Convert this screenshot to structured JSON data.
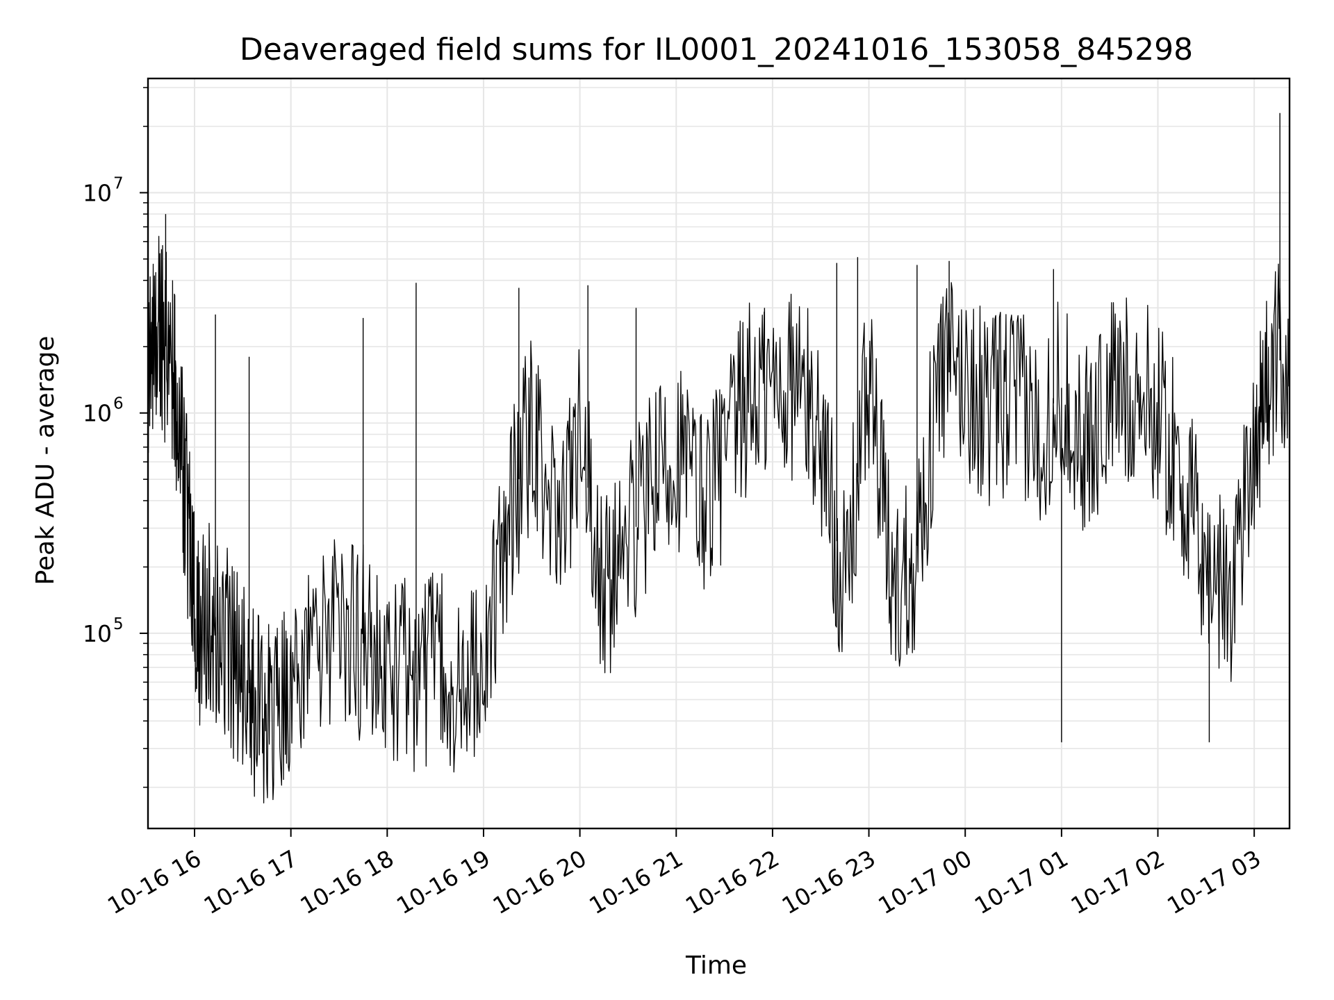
{
  "chart_data": {
    "type": "line",
    "title": "Deaveraged field sums for IL0001_20241016_153058_845298",
    "xlabel": "Time",
    "ylabel": "Peak ADU - average",
    "yscale": "log",
    "ylim": [
      13000,
      33000000
    ],
    "xlim": [
      "2024-10-16 15:31",
      "2024-10-17 03:22"
    ],
    "x_tick_labels": [
      "10-16 16",
      "10-16 17",
      "10-16 18",
      "10-16 19",
      "10-16 20",
      "10-16 21",
      "10-16 22",
      "10-16 23",
      "10-17 00",
      "10-17 01",
      "10-17 02",
      "10-17 03"
    ],
    "y_tick_labels": [
      {
        "base": "10",
        "exponent": "5",
        "value": 100000
      },
      {
        "base": "10",
        "exponent": "6",
        "value": 1000000
      },
      {
        "base": "10",
        "exponent": "7",
        "value": 10000000
      }
    ],
    "grid": true,
    "line_color": "#000000",
    "grid_color": "#e6e6e6",
    "series": [
      {
        "name": "",
        "x": [
          "2024-10-16 15:31",
          "2024-10-16 15:38",
          "2024-10-16 15:44",
          "2024-10-16 15:50",
          "2024-10-16 15:56",
          "2024-10-16 16:02",
          "2024-10-16 16:10",
          "2024-10-16 16:20",
          "2024-10-16 16:30",
          "2024-10-16 16:40",
          "2024-10-16 16:50",
          "2024-10-16 17:00",
          "2024-10-16 17:15",
          "2024-10-16 17:30",
          "2024-10-16 17:45",
          "2024-10-16 18:00",
          "2024-10-16 18:15",
          "2024-10-16 18:30",
          "2024-10-16 18:45",
          "2024-10-16 19:00",
          "2024-10-16 19:15",
          "2024-10-16 19:30",
          "2024-10-16 19:45",
          "2024-10-16 20:00",
          "2024-10-16 20:15",
          "2024-10-16 20:30",
          "2024-10-16 20:45",
          "2024-10-16 21:00",
          "2024-10-16 21:15",
          "2024-10-16 21:30",
          "2024-10-16 21:45",
          "2024-10-16 22:00",
          "2024-10-16 22:15",
          "2024-10-16 22:30",
          "2024-10-16 22:45",
          "2024-10-16 23:00",
          "2024-10-16 23:15",
          "2024-10-16 23:30",
          "2024-10-16 23:45",
          "2024-10-17 00:00",
          "2024-10-17 00:15",
          "2024-10-17 00:30",
          "2024-10-17 00:45",
          "2024-10-17 01:00",
          "2024-10-17 01:15",
          "2024-10-17 01:30",
          "2024-10-17 01:45",
          "2024-10-17 02:00",
          "2024-10-17 02:15",
          "2024-10-17 02:30",
          "2024-10-17 02:45",
          "2024-10-17 03:00",
          "2024-10-17 03:10",
          "2024-10-17 03:22"
        ],
        "y": [
          1500000,
          2500000,
          1800000,
          1000000,
          300000,
          100000,
          120000,
          90000,
          60000,
          45000,
          40000,
          55000,
          80000,
          100000,
          90000,
          70000,
          65000,
          70000,
          60000,
          70000,
          300000,
          900000,
          300000,
          800000,
          150000,
          250000,
          450000,
          700000,
          400000,
          600000,
          1200000,
          1300000,
          1400000,
          800000,
          150000,
          1500000,
          150000,
          250000,
          1600000,
          1400000,
          1000000,
          1200000,
          800000,
          1300000,
          700000,
          1200000,
          1300000,
          1000000,
          500000,
          200000,
          150000,
          800000,
          1500000,
          2000000
        ]
      }
    ],
    "spikes": [
      {
        "x": "2024-10-16 15:42",
        "y": 8000000
      },
      {
        "x": "2024-10-16 16:13",
        "y": 2800000
      },
      {
        "x": "2024-10-16 16:34",
        "y": 1800000
      },
      {
        "x": "2024-10-16 17:45",
        "y": 2700000
      },
      {
        "x": "2024-10-16 18:18",
        "y": 3900000
      },
      {
        "x": "2024-10-16 19:22",
        "y": 3700000
      },
      {
        "x": "2024-10-16 20:05",
        "y": 3800000
      },
      {
        "x": "2024-10-16 20:35",
        "y": 3000000
      },
      {
        "x": "2024-10-16 21:55",
        "y": 3000000
      },
      {
        "x": "2024-10-16 22:40",
        "y": 4800000
      },
      {
        "x": "2024-10-16 22:53",
        "y": 5100000
      },
      {
        "x": "2024-10-16 23:30",
        "y": 4700000
      },
      {
        "x": "2024-10-16 23:50",
        "y": 4900000
      },
      {
        "x": "2024-10-17 00:55",
        "y": 4500000
      },
      {
        "x": "2024-10-17 01:00",
        "y": 32000
      },
      {
        "x": "2024-10-17 02:32",
        "y": 32000
      },
      {
        "x": "2024-10-17 03:16",
        "y": 23000000
      }
    ]
  }
}
